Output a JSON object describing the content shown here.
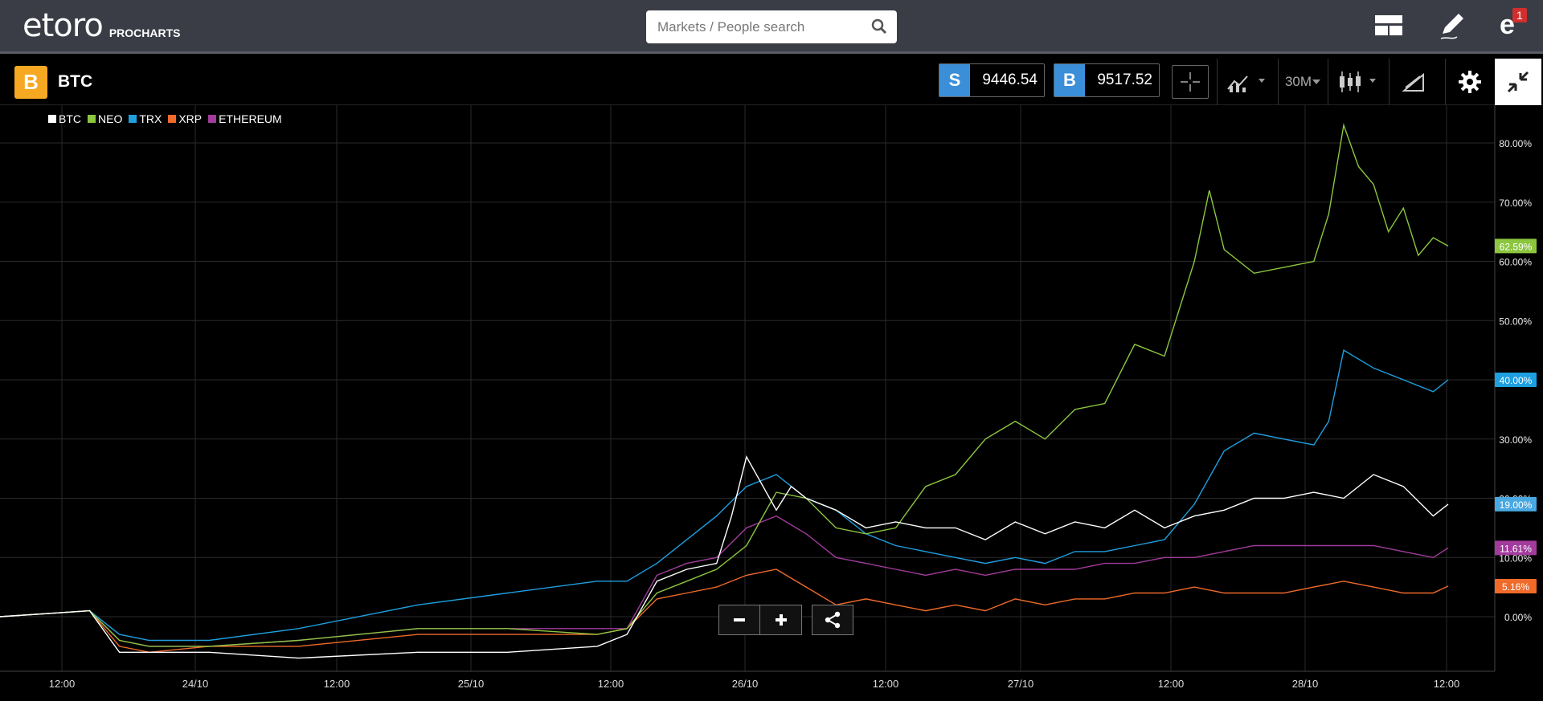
{
  "header": {
    "logo_text": "etoro",
    "logo_sub": "PROCHARTS",
    "search_placeholder": "Markets / People search",
    "notification_count": "1"
  },
  "toolbar": {
    "asset_symbol_glyph": "B",
    "asset_name": "BTC",
    "sell_label": "S",
    "sell_price": "9446.54",
    "buy_label": "B",
    "buy_price": "9517.52",
    "timeframe": "30M"
  },
  "colors": {
    "BTC": "#ffffff",
    "NEO": "#8cc63f",
    "TRX": "#1e9fe0",
    "XRP": "#f06a2a",
    "ETHEREUM": "#a23b9c",
    "accent_blue": "#3a8fd8",
    "btc_orange": "#f7a823"
  },
  "chart_data": {
    "type": "line",
    "xlabels": [
      "12:00",
      "24/10",
      "12:00",
      "25/10",
      "12:00",
      "26/10",
      "12:00",
      "27/10",
      "12:00",
      "28/10",
      "12:00"
    ],
    "ylabels": [
      "0.00%",
      "10.00%",
      "20.00%",
      "30.00%",
      "40.00%",
      "50.00%",
      "60.00%",
      "70.00%",
      "80.00%"
    ],
    "ylim": [
      -10,
      90
    ],
    "grid": true,
    "legend_position": "top-left",
    "series": [
      {
        "name": "BTC",
        "last_label": "19.00%",
        "x": [
          0,
          3,
          4,
          5,
          7,
          10,
          14,
          17,
          20,
          21,
          22,
          23,
          24,
          24.5,
          25,
          26,
          26.5,
          27,
          28,
          29,
          30,
          31,
          32,
          33,
          34,
          35,
          36,
          37,
          38,
          39,
          40,
          41,
          42,
          43,
          44,
          45,
          46,
          47,
          48,
          48.5
        ],
        "y": [
          0,
          1,
          -6,
          -6,
          -6,
          -7,
          -6,
          -6,
          -5,
          -3,
          6,
          8,
          9,
          17,
          27,
          18,
          22,
          20,
          18,
          15,
          16,
          15,
          15,
          13,
          16,
          14,
          16,
          15,
          18,
          15,
          17,
          18,
          20,
          20,
          21,
          20,
          24,
          22,
          17,
          19
        ]
      },
      {
        "name": "NEO",
        "last_label": "62.59%",
        "x": [
          0,
          3,
          4,
          5,
          7,
          10,
          14,
          17,
          20,
          21,
          22,
          23,
          24,
          25,
          26,
          27,
          28,
          29,
          30,
          31,
          32,
          33,
          34,
          35,
          36,
          37,
          38,
          39,
          40,
          40.5,
          41,
          42,
          43,
          44,
          44.5,
          45,
          45.5,
          46,
          46.5,
          47,
          47.5,
          48,
          48.5
        ],
        "y": [
          0,
          1,
          -4,
          -5,
          -5,
          -4,
          -2,
          -2,
          -3,
          -2,
          4,
          6,
          8,
          12,
          21,
          20,
          15,
          14,
          15,
          22,
          24,
          30,
          33,
          30,
          35,
          36,
          46,
          44,
          60,
          72,
          62,
          58,
          59,
          60,
          68,
          83,
          76,
          73,
          65,
          69,
          61,
          64,
          62.59
        ]
      },
      {
        "name": "TRX",
        "last_label": "40.00%",
        "x": [
          0,
          3,
          4,
          5,
          7,
          10,
          14,
          17,
          20,
          21,
          22,
          23,
          24,
          25,
          26,
          27,
          28,
          29,
          30,
          31,
          32,
          33,
          34,
          35,
          36,
          37,
          38,
          39,
          40,
          41,
          42,
          43,
          44,
          44.5,
          45,
          46,
          47,
          48,
          48.5
        ],
        "y": [
          0,
          1,
          -3,
          -4,
          -4,
          -2,
          2,
          4,
          6,
          6,
          9,
          13,
          17,
          22,
          24,
          20,
          18,
          14,
          12,
          11,
          10,
          9,
          10,
          9,
          11,
          11,
          12,
          13,
          19,
          28,
          31,
          30,
          29,
          33,
          45,
          42,
          40,
          38,
          40
        ]
      },
      {
        "name": "XRP",
        "last_label": "5.16%",
        "x": [
          0,
          3,
          4,
          5,
          7,
          10,
          14,
          17,
          20,
          21,
          22,
          23,
          24,
          25,
          26,
          27,
          28,
          29,
          30,
          31,
          32,
          33,
          34,
          35,
          36,
          37,
          38,
          39,
          40,
          41,
          42,
          43,
          44,
          45,
          46,
          47,
          48,
          48.5
        ],
        "y": [
          0,
          1,
          -5,
          -6,
          -5,
          -5,
          -3,
          -3,
          -3,
          -2,
          3,
          4,
          5,
          7,
          8,
          5,
          2,
          3,
          2,
          1,
          2,
          1,
          3,
          2,
          3,
          3,
          4,
          4,
          5,
          4,
          4,
          4,
          5,
          6,
          5,
          4,
          4,
          5.16
        ]
      },
      {
        "name": "ETHEREUM",
        "last_label": "11.61%",
        "x": [
          0,
          3,
          4,
          5,
          7,
          10,
          14,
          17,
          20,
          21,
          22,
          23,
          24,
          25,
          26,
          27,
          28,
          29,
          30,
          31,
          32,
          33,
          34,
          35,
          36,
          37,
          38,
          39,
          40,
          41,
          42,
          43,
          44,
          45,
          46,
          47,
          48,
          48.5
        ],
        "y": [
          0,
          1,
          -4,
          -5,
          -5,
          -4,
          -2,
          -2,
          -2,
          -2,
          7,
          9,
          10,
          15,
          17,
          14,
          10,
          9,
          8,
          7,
          8,
          7,
          8,
          8,
          8,
          9,
          9,
          10,
          10,
          11,
          12,
          12,
          12,
          12,
          12,
          11,
          10,
          11.61
        ]
      }
    ]
  }
}
